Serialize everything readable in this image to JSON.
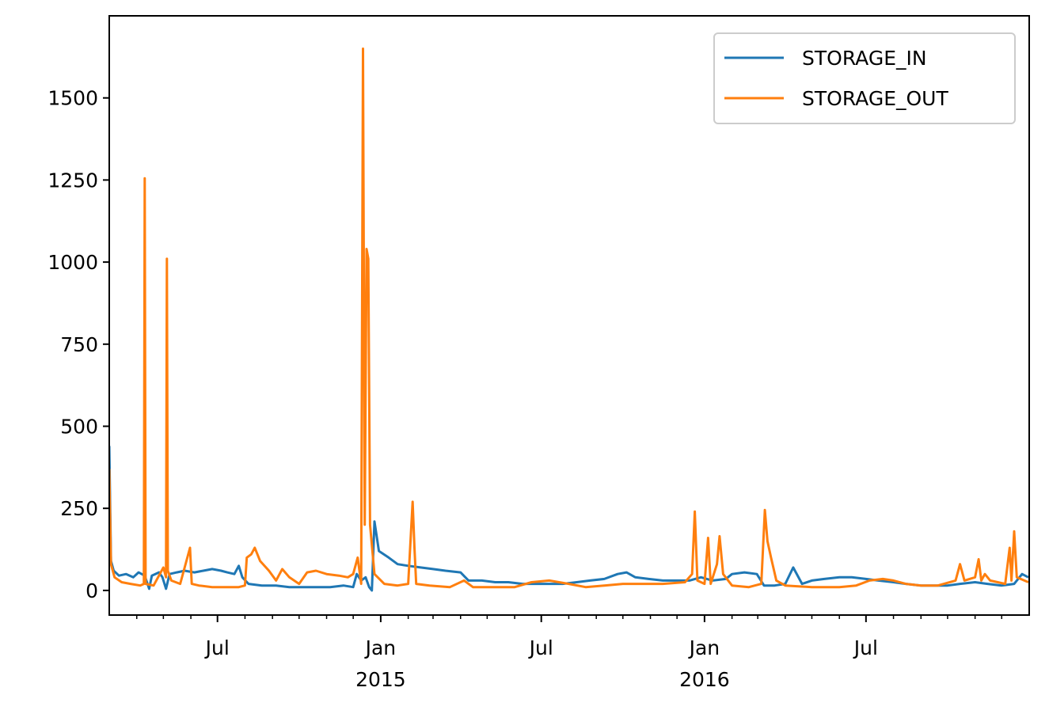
{
  "chart_data": {
    "type": "line",
    "title": "",
    "xlabel": "",
    "ylabel": "",
    "xlim": [
      "2014-03-01",
      "2016-12-31"
    ],
    "ylim": [
      -75,
      1750
    ],
    "y_ticks": [
      0,
      250,
      500,
      750,
      1000,
      1250,
      1500
    ],
    "x_major_ticks": [
      {
        "date": "2014-07-01",
        "label": "Jul",
        "sublabel": ""
      },
      {
        "date": "2015-01-01",
        "label": "Jan",
        "sublabel": "2015"
      },
      {
        "date": "2015-07-01",
        "label": "Jul",
        "sublabel": ""
      },
      {
        "date": "2016-01-01",
        "label": "Jan",
        "sublabel": "2016"
      },
      {
        "date": "2016-07-01",
        "label": "Jul",
        "sublabel": ""
      }
    ],
    "x_minor_ticks": [
      "2014-04-01",
      "2014-05-01",
      "2014-06-01",
      "2014-08-01",
      "2014-09-01",
      "2014-10-01",
      "2014-11-01",
      "2014-12-01",
      "2015-02-01",
      "2015-03-01",
      "2015-04-01",
      "2015-05-01",
      "2015-06-01",
      "2015-08-01",
      "2015-09-01",
      "2015-10-01",
      "2015-11-01",
      "2015-12-01",
      "2016-02-01",
      "2016-03-01",
      "2016-04-01",
      "2016-05-01",
      "2016-06-01",
      "2016-08-01",
      "2016-09-01",
      "2016-10-01",
      "2016-11-01",
      "2016-12-01"
    ],
    "grid": false,
    "legend": "top-right",
    "series": [
      {
        "name": "STORAGE_IN",
        "color": "#1f77b4",
        "points": [
          [
            "2014-03-01",
            440
          ],
          [
            "2014-03-03",
            90
          ],
          [
            "2014-03-06",
            60
          ],
          [
            "2014-03-12",
            45
          ],
          [
            "2014-03-20",
            50
          ],
          [
            "2014-03-28",
            40
          ],
          [
            "2014-04-03",
            55
          ],
          [
            "2014-04-10",
            45
          ],
          [
            "2014-04-15",
            5
          ],
          [
            "2014-04-18",
            45
          ],
          [
            "2014-04-26",
            55
          ],
          [
            "2014-04-30",
            40
          ],
          [
            "2014-05-04",
            5
          ],
          [
            "2014-05-08",
            50
          ],
          [
            "2014-05-16",
            55
          ],
          [
            "2014-05-25",
            60
          ],
          [
            "2014-06-05",
            55
          ],
          [
            "2014-06-15",
            60
          ],
          [
            "2014-06-25",
            65
          ],
          [
            "2014-07-05",
            60
          ],
          [
            "2014-07-12",
            55
          ],
          [
            "2014-07-20",
            50
          ],
          [
            "2014-07-25",
            75
          ],
          [
            "2014-07-29",
            40
          ],
          [
            "2014-08-05",
            20
          ],
          [
            "2014-08-20",
            15
          ],
          [
            "2014-09-05",
            15
          ],
          [
            "2014-09-20",
            10
          ],
          [
            "2014-10-05",
            10
          ],
          [
            "2014-10-20",
            10
          ],
          [
            "2014-11-05",
            10
          ],
          [
            "2014-11-20",
            15
          ],
          [
            "2014-12-01",
            10
          ],
          [
            "2014-12-05",
            50
          ],
          [
            "2014-12-10",
            30
          ],
          [
            "2014-12-15",
            40
          ],
          [
            "2014-12-19",
            10
          ],
          [
            "2014-12-22",
            0
          ],
          [
            "2014-12-25",
            210
          ],
          [
            "2014-12-30",
            120
          ],
          [
            "2015-01-10",
            100
          ],
          [
            "2015-01-20",
            80
          ],
          [
            "2015-02-01",
            75
          ],
          [
            "2015-02-15",
            70
          ],
          [
            "2015-03-01",
            65
          ],
          [
            "2015-03-15",
            60
          ],
          [
            "2015-04-01",
            55
          ],
          [
            "2015-04-10",
            30
          ],
          [
            "2015-04-25",
            30
          ],
          [
            "2015-05-10",
            25
          ],
          [
            "2015-05-25",
            25
          ],
          [
            "2015-06-10",
            20
          ],
          [
            "2015-06-25",
            20
          ],
          [
            "2015-07-10",
            20
          ],
          [
            "2015-07-25",
            20
          ],
          [
            "2015-08-10",
            25
          ],
          [
            "2015-08-25",
            30
          ],
          [
            "2015-09-10",
            35
          ],
          [
            "2015-09-25",
            50
          ],
          [
            "2015-10-05",
            55
          ],
          [
            "2015-10-15",
            40
          ],
          [
            "2015-10-30",
            35
          ],
          [
            "2015-11-15",
            30
          ],
          [
            "2015-12-01",
            30
          ],
          [
            "2015-12-15",
            30
          ],
          [
            "2015-12-28",
            40
          ],
          [
            "2016-01-10",
            30
          ],
          [
            "2016-01-25",
            35
          ],
          [
            "2016-02-01",
            50
          ],
          [
            "2016-02-15",
            55
          ],
          [
            "2016-02-29",
            50
          ],
          [
            "2016-03-08",
            15
          ],
          [
            "2016-03-20",
            15
          ],
          [
            "2016-04-01",
            20
          ],
          [
            "2016-04-10",
            70
          ],
          [
            "2016-04-20",
            20
          ],
          [
            "2016-05-01",
            30
          ],
          [
            "2016-05-15",
            35
          ],
          [
            "2016-06-01",
            40
          ],
          [
            "2016-06-15",
            40
          ],
          [
            "2016-07-01",
            35
          ],
          [
            "2016-07-15",
            30
          ],
          [
            "2016-08-01",
            25
          ],
          [
            "2016-08-15",
            20
          ],
          [
            "2016-09-01",
            15
          ],
          [
            "2016-09-15",
            15
          ],
          [
            "2016-10-01",
            15
          ],
          [
            "2016-10-15",
            20
          ],
          [
            "2016-11-01",
            25
          ],
          [
            "2016-11-15",
            20
          ],
          [
            "2016-12-01",
            15
          ],
          [
            "2016-12-15",
            20
          ],
          [
            "2016-12-24",
            50
          ],
          [
            "2016-12-31",
            40
          ]
        ]
      },
      {
        "name": "STORAGE_OUT",
        "color": "#ff7f0e",
        "points": [
          [
            "2014-03-01",
            370
          ],
          [
            "2014-03-03",
            80
          ],
          [
            "2014-03-07",
            40
          ],
          [
            "2014-03-15",
            25
          ],
          [
            "2014-03-25",
            20
          ],
          [
            "2014-04-05",
            15
          ],
          [
            "2014-04-09",
            20
          ],
          [
            "2014-04-10",
            1255
          ],
          [
            "2014-04-11",
            20
          ],
          [
            "2014-04-20",
            15
          ],
          [
            "2014-05-01",
            70
          ],
          [
            "2014-05-04",
            40
          ],
          [
            "2014-05-05",
            1010
          ],
          [
            "2014-05-06",
            60
          ],
          [
            "2014-05-10",
            30
          ],
          [
            "2014-05-20",
            20
          ],
          [
            "2014-05-31",
            130
          ],
          [
            "2014-06-02",
            20
          ],
          [
            "2014-06-10",
            15
          ],
          [
            "2014-06-25",
            10
          ],
          [
            "2014-07-10",
            10
          ],
          [
            "2014-07-25",
            10
          ],
          [
            "2014-08-01",
            15
          ],
          [
            "2014-08-03",
            100
          ],
          [
            "2014-08-08",
            110
          ],
          [
            "2014-08-12",
            130
          ],
          [
            "2014-08-18",
            90
          ],
          [
            "2014-08-28",
            60
          ],
          [
            "2014-09-05",
            30
          ],
          [
            "2014-09-12",
            65
          ],
          [
            "2014-09-20",
            40
          ],
          [
            "2014-10-01",
            20
          ],
          [
            "2014-10-10",
            55
          ],
          [
            "2014-10-20",
            60
          ],
          [
            "2014-11-01",
            50
          ],
          [
            "2014-11-15",
            45
          ],
          [
            "2014-11-25",
            40
          ],
          [
            "2014-12-01",
            50
          ],
          [
            "2014-12-06",
            100
          ],
          [
            "2014-12-10",
            20
          ],
          [
            "2014-12-12",
            1650
          ],
          [
            "2014-12-14",
            200
          ],
          [
            "2014-12-16",
            1040
          ],
          [
            "2014-12-18",
            1010
          ],
          [
            "2014-12-20",
            200
          ],
          [
            "2014-12-25",
            50
          ],
          [
            "2015-01-05",
            20
          ],
          [
            "2015-01-20",
            15
          ],
          [
            "2015-02-01",
            20
          ],
          [
            "2015-02-06",
            270
          ],
          [
            "2015-02-08",
            130
          ],
          [
            "2015-02-10",
            20
          ],
          [
            "2015-02-25",
            15
          ],
          [
            "2015-03-20",
            10
          ],
          [
            "2015-04-05",
            30
          ],
          [
            "2015-04-15",
            10
          ],
          [
            "2015-05-01",
            10
          ],
          [
            "2015-06-01",
            10
          ],
          [
            "2015-06-20",
            25
          ],
          [
            "2015-07-10",
            30
          ],
          [
            "2015-08-01",
            20
          ],
          [
            "2015-08-20",
            10
          ],
          [
            "2015-09-10",
            15
          ],
          [
            "2015-10-01",
            20
          ],
          [
            "2015-10-20",
            20
          ],
          [
            "2015-11-15",
            20
          ],
          [
            "2015-12-10",
            25
          ],
          [
            "2015-12-18",
            50
          ],
          [
            "2015-12-21",
            240
          ],
          [
            "2015-12-24",
            30
          ],
          [
            "2016-01-01",
            20
          ],
          [
            "2016-01-05",
            160
          ],
          [
            "2016-01-08",
            20
          ],
          [
            "2016-01-15",
            80
          ],
          [
            "2016-01-18",
            165
          ],
          [
            "2016-01-22",
            50
          ],
          [
            "2016-02-01",
            15
          ],
          [
            "2016-02-20",
            10
          ],
          [
            "2016-03-05",
            20
          ],
          [
            "2016-03-09",
            245
          ],
          [
            "2016-03-12",
            150
          ],
          [
            "2016-03-16",
            100
          ],
          [
            "2016-03-22",
            30
          ],
          [
            "2016-04-01",
            15
          ],
          [
            "2016-05-01",
            10
          ],
          [
            "2016-06-01",
            10
          ],
          [
            "2016-06-20",
            15
          ],
          [
            "2016-07-05",
            30
          ],
          [
            "2016-07-20",
            35
          ],
          [
            "2016-08-01",
            30
          ],
          [
            "2016-08-15",
            20
          ],
          [
            "2016-09-01",
            15
          ],
          [
            "2016-09-20",
            15
          ],
          [
            "2016-10-10",
            30
          ],
          [
            "2016-10-15",
            80
          ],
          [
            "2016-10-20",
            30
          ],
          [
            "2016-11-01",
            40
          ],
          [
            "2016-11-05",
            95
          ],
          [
            "2016-11-08",
            30
          ],
          [
            "2016-11-12",
            50
          ],
          [
            "2016-11-18",
            30
          ],
          [
            "2016-12-05",
            20
          ],
          [
            "2016-12-10",
            130
          ],
          [
            "2016-12-12",
            30
          ],
          [
            "2016-12-15",
            180
          ],
          [
            "2016-12-18",
            40
          ],
          [
            "2016-12-31",
            25
          ]
        ]
      }
    ]
  }
}
